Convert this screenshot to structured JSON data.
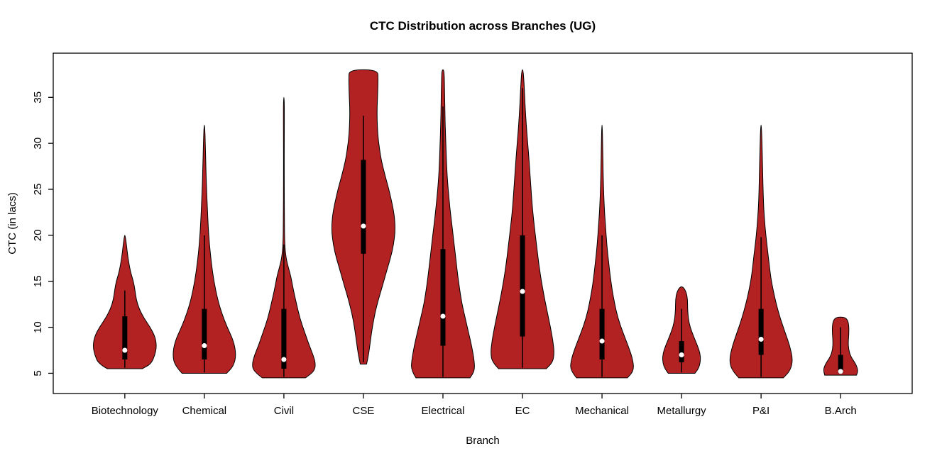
{
  "page": {
    "background": "#FFFFFF"
  },
  "chart_data": {
    "type": "violin",
    "title": "CTC Distribution across Branches (UG)",
    "xlabel": "Branch",
    "ylabel": "CTC (in lacs)",
    "ylim": [
      2.8,
      39.8
    ],
    "yticks": [
      5,
      10,
      15,
      20,
      25,
      30,
      35
    ],
    "x_slots": 10.8,
    "x_offset": 0.1,
    "max_halfwidth": 0.4,
    "fill_color": "#B22222",
    "outline_color": "#000000",
    "box_color": "#000000",
    "median_color": "#FFFFFF",
    "grid": false,
    "legend": "none",
    "categories": [
      "Biotechnology",
      "Chemical",
      "Civil",
      "CSE",
      "Electrical",
      "EC",
      "Mechanical",
      "Metallurgy",
      "P&I",
      "B.Arch"
    ],
    "violins": [
      {
        "label": "Biotechnology",
        "profile": [
          [
            5.5,
            0.55
          ],
          [
            6.0,
            0.82
          ],
          [
            7.0,
            0.95
          ],
          [
            8.0,
            1.0
          ],
          [
            9.0,
            0.95
          ],
          [
            10.0,
            0.8
          ],
          [
            11.0,
            0.6
          ],
          [
            12.0,
            0.45
          ],
          [
            13.0,
            0.36
          ],
          [
            14.0,
            0.32
          ],
          [
            15.0,
            0.27
          ],
          [
            16.0,
            0.18
          ],
          [
            17.5,
            0.1
          ],
          [
            19.0,
            0.05
          ],
          [
            20.0,
            0.01
          ]
        ],
        "box": {
          "q1": 6.5,
          "q3": 11.2,
          "median": 7.5,
          "whisker_low": 5.6,
          "whisker_high": 14.0
        }
      },
      {
        "label": "Chemical",
        "profile": [
          [
            5.0,
            0.7
          ],
          [
            5.8,
            0.92
          ],
          [
            7.0,
            1.0
          ],
          [
            8.5,
            0.92
          ],
          [
            10.0,
            0.72
          ],
          [
            11.5,
            0.55
          ],
          [
            13.0,
            0.42
          ],
          [
            15.0,
            0.3
          ],
          [
            17.0,
            0.22
          ],
          [
            19.0,
            0.16
          ],
          [
            21.0,
            0.12
          ],
          [
            24.0,
            0.08
          ],
          [
            27.0,
            0.05
          ],
          [
            30.0,
            0.03
          ],
          [
            32.0,
            0.01
          ]
        ],
        "box": {
          "q1": 6.5,
          "q3": 12.0,
          "median": 8.0,
          "whisker_low": 5.1,
          "whisker_high": 20.0
        }
      },
      {
        "label": "Civil",
        "profile": [
          [
            4.5,
            0.68
          ],
          [
            5.2,
            0.95
          ],
          [
            6.0,
            1.0
          ],
          [
            7.0,
            0.92
          ],
          [
            8.0,
            0.8
          ],
          [
            9.5,
            0.65
          ],
          [
            11.0,
            0.5
          ],
          [
            12.5,
            0.4
          ],
          [
            14.0,
            0.3
          ],
          [
            15.5,
            0.22
          ],
          [
            16.5,
            0.14
          ],
          [
            17.5,
            0.07
          ],
          [
            19.0,
            0.025
          ],
          [
            22.0,
            0.015
          ],
          [
            26.0,
            0.012
          ],
          [
            30.0,
            0.012
          ],
          [
            33.0,
            0.015
          ],
          [
            35.0,
            0.01
          ]
        ],
        "box": {
          "q1": 5.5,
          "q3": 12.0,
          "median": 6.5,
          "whisker_low": 4.6,
          "whisker_high": 19.0
        }
      },
      {
        "label": "CSE",
        "profile": [
          [
            6.0,
            0.1
          ],
          [
            7.0,
            0.16
          ],
          [
            8.5,
            0.22
          ],
          [
            10.0,
            0.28
          ],
          [
            11.5,
            0.36
          ],
          [
            13.0,
            0.47
          ],
          [
            14.5,
            0.6
          ],
          [
            16.0,
            0.72
          ],
          [
            17.5,
            0.85
          ],
          [
            19.0,
            0.95
          ],
          [
            20.5,
            1.0
          ],
          [
            22.0,
            0.98
          ],
          [
            23.5,
            0.9
          ],
          [
            25.0,
            0.8
          ],
          [
            26.5,
            0.68
          ],
          [
            28.0,
            0.57
          ],
          [
            29.5,
            0.5
          ],
          [
            31.0,
            0.45
          ],
          [
            32.5,
            0.43
          ],
          [
            34.0,
            0.43
          ],
          [
            35.5,
            0.45
          ],
          [
            37.0,
            0.46
          ],
          [
            38.0,
            0.45
          ]
        ],
        "box": {
          "q1": 18.0,
          "q3": 28.2,
          "median": 21.0,
          "whisker_low": 6.2,
          "whisker_high": 33.0
        }
      },
      {
        "label": "Electrical",
        "profile": [
          [
            4.5,
            0.85
          ],
          [
            5.3,
            1.0
          ],
          [
            6.5,
            0.98
          ],
          [
            8.0,
            0.9
          ],
          [
            9.5,
            0.8
          ],
          [
            11.0,
            0.7
          ],
          [
            12.5,
            0.6
          ],
          [
            14.0,
            0.53
          ],
          [
            15.5,
            0.47
          ],
          [
            17.0,
            0.42
          ],
          [
            18.5,
            0.37
          ],
          [
            20.0,
            0.32
          ],
          [
            22.0,
            0.25
          ],
          [
            24.0,
            0.19
          ],
          [
            26.0,
            0.14
          ],
          [
            28.0,
            0.11
          ],
          [
            30.0,
            0.09
          ],
          [
            32.0,
            0.07
          ],
          [
            34.0,
            0.06
          ],
          [
            36.0,
            0.05
          ],
          [
            37.5,
            0.04
          ],
          [
            38.0,
            0.02
          ]
        ],
        "box": {
          "q1": 8.0,
          "q3": 18.5,
          "median": 11.2,
          "whisker_low": 4.6,
          "whisker_high": 34.0
        }
      },
      {
        "label": "EC",
        "profile": [
          [
            5.5,
            0.75
          ],
          [
            6.2,
            0.95
          ],
          [
            7.2,
            1.0
          ],
          [
            8.5,
            0.96
          ],
          [
            10.0,
            0.88
          ],
          [
            11.5,
            0.79
          ],
          [
            13.0,
            0.7
          ],
          [
            14.5,
            0.62
          ],
          [
            16.0,
            0.55
          ],
          [
            17.5,
            0.49
          ],
          [
            19.0,
            0.44
          ],
          [
            21.0,
            0.37
          ],
          [
            23.0,
            0.31
          ],
          [
            25.0,
            0.27
          ],
          [
            27.0,
            0.23
          ],
          [
            29.0,
            0.19
          ],
          [
            31.0,
            0.14
          ],
          [
            33.0,
            0.1
          ],
          [
            35.0,
            0.07
          ],
          [
            36.5,
            0.05
          ],
          [
            38.0,
            0.02
          ]
        ],
        "box": {
          "q1": 9.0,
          "q3": 20.0,
          "median": 13.9,
          "whisker_low": 5.6,
          "whisker_high": 36.0
        }
      },
      {
        "label": "Mechanical",
        "profile": [
          [
            4.5,
            0.8
          ],
          [
            5.3,
            1.0
          ],
          [
            6.5,
            0.97
          ],
          [
            8.0,
            0.82
          ],
          [
            9.5,
            0.65
          ],
          [
            11.0,
            0.5
          ],
          [
            12.5,
            0.4
          ],
          [
            14.0,
            0.32
          ],
          [
            15.5,
            0.26
          ],
          [
            17.0,
            0.21
          ],
          [
            19.0,
            0.15
          ],
          [
            21.0,
            0.11
          ],
          [
            23.0,
            0.07
          ],
          [
            26.0,
            0.04
          ],
          [
            29.0,
            0.025
          ],
          [
            32.0,
            0.01
          ]
        ],
        "box": {
          "q1": 6.5,
          "q3": 12.0,
          "median": 8.5,
          "whisker_low": 4.6,
          "whisker_high": 20.0
        }
      },
      {
        "label": "Metallurgy",
        "profile": [
          [
            5.0,
            0.42
          ],
          [
            5.6,
            0.55
          ],
          [
            6.5,
            0.6
          ],
          [
            7.2,
            0.58
          ],
          [
            8.0,
            0.5
          ],
          [
            9.0,
            0.38
          ],
          [
            10.0,
            0.27
          ],
          [
            11.0,
            0.21
          ],
          [
            12.0,
            0.19
          ],
          [
            13.0,
            0.19
          ],
          [
            13.8,
            0.15
          ],
          [
            14.4,
            0.05
          ]
        ],
        "box": {
          "q1": 6.2,
          "q3": 8.5,
          "median": 7.0,
          "whisker_low": 5.1,
          "whisker_high": 12.0
        }
      },
      {
        "label": "P&I",
        "profile": [
          [
            4.5,
            0.7
          ],
          [
            5.3,
            0.92
          ],
          [
            6.5,
            1.0
          ],
          [
            8.0,
            0.9
          ],
          [
            9.5,
            0.75
          ],
          [
            11.0,
            0.6
          ],
          [
            12.5,
            0.48
          ],
          [
            14.0,
            0.38
          ],
          [
            15.5,
            0.3
          ],
          [
            17.0,
            0.25
          ],
          [
            18.5,
            0.2
          ],
          [
            20.0,
            0.15
          ],
          [
            22.0,
            0.1
          ],
          [
            24.0,
            0.07
          ],
          [
            27.0,
            0.05
          ],
          [
            30.0,
            0.03
          ],
          [
            32.0,
            0.01
          ]
        ],
        "box": {
          "q1": 7.0,
          "q3": 12.0,
          "median": 8.7,
          "whisker_low": 4.6,
          "whisker_high": 19.8
        }
      },
      {
        "label": "B.Arch",
        "profile": [
          [
            4.8,
            0.5
          ],
          [
            5.3,
            0.55
          ],
          [
            6.0,
            0.48
          ],
          [
            6.8,
            0.32
          ],
          [
            7.6,
            0.25
          ],
          [
            8.5,
            0.24
          ],
          [
            9.3,
            0.26
          ],
          [
            10.2,
            0.26
          ],
          [
            10.8,
            0.22
          ],
          [
            11.1,
            0.12
          ]
        ],
        "box": {
          "q1": 5.0,
          "q3": 7.0,
          "median": 5.2,
          "whisker_low": 4.9,
          "whisker_high": 10.0
        }
      }
    ]
  }
}
